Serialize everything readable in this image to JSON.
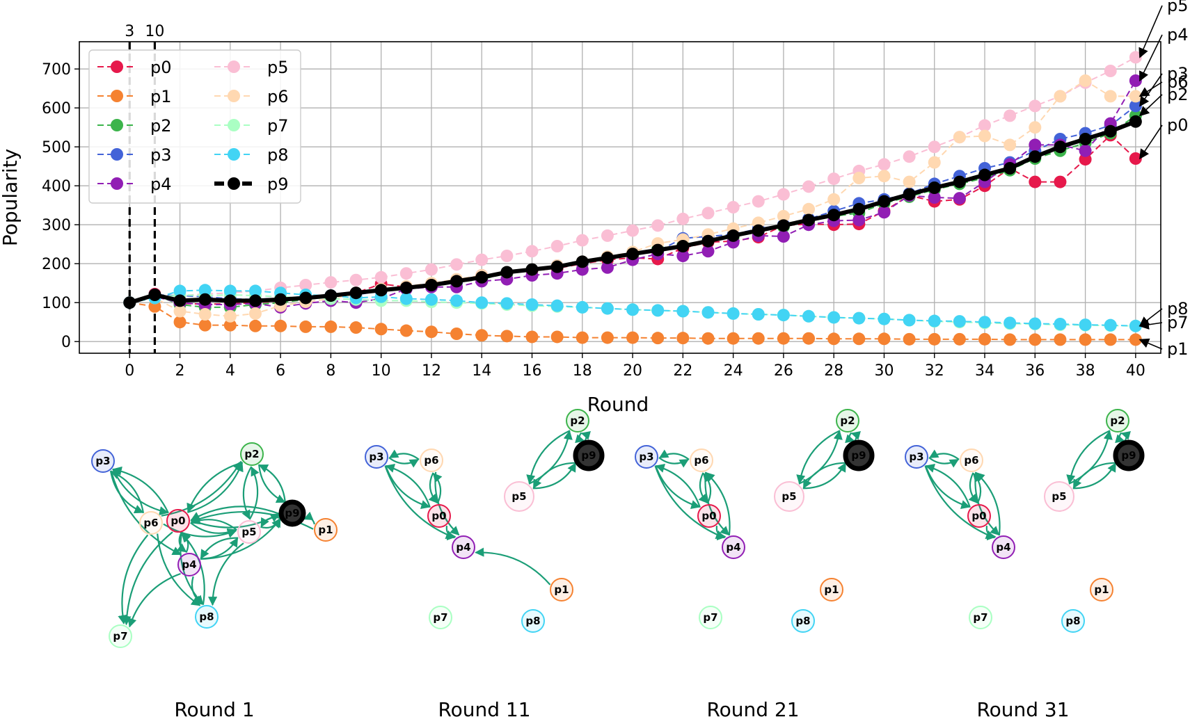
{
  "chart_data": [
    {
      "type": "line",
      "xlabel": "Round",
      "ylabel": "Popularity",
      "xlim": [
        -2,
        41
      ],
      "ylim": [
        -30,
        770
      ],
      "xticks": [
        0,
        2,
        4,
        6,
        8,
        10,
        12,
        14,
        16,
        18,
        20,
        22,
        24,
        26,
        28,
        30,
        32,
        34,
        36,
        38,
        40
      ],
      "yticks": [
        0,
        100,
        200,
        300,
        400,
        500,
        600,
        700
      ],
      "grid": true,
      "legend": "upper-left",
      "vlines": [
        {
          "x": 0,
          "label": "3"
        },
        {
          "x": 1,
          "label": "10"
        }
      ],
      "x": [
        0,
        1,
        2,
        3,
        4,
        5,
        6,
        7,
        8,
        9,
        10,
        11,
        12,
        13,
        14,
        15,
        16,
        17,
        18,
        19,
        20,
        21,
        22,
        23,
        24,
        25,
        26,
        27,
        28,
        29,
        30,
        31,
        32,
        33,
        34,
        35,
        36,
        37,
        38,
        39,
        40
      ],
      "series": [
        {
          "name": "p0",
          "color": "#e6194b",
          "values": [
            100,
            122,
            98,
            96,
            97,
            100,
            104,
            112,
            118,
            125,
            148,
            140,
            145,
            155,
            170,
            175,
            182,
            188,
            200,
            210,
            215,
            212,
            240,
            255,
            258,
            268,
            298,
            302,
            300,
            302,
            335,
            375,
            360,
            365,
            400,
            445,
            410,
            410,
            468,
            530,
            470
          ]
        },
        {
          "name": "p1",
          "color": "#f58231",
          "values": [
            100,
            90,
            50,
            42,
            42,
            40,
            40,
            38,
            38,
            36,
            32,
            28,
            25,
            20,
            16,
            14,
            12,
            12,
            10,
            10,
            10,
            9,
            9,
            8,
            8,
            8,
            8,
            8,
            7,
            7,
            7,
            6,
            6,
            6,
            6,
            5,
            5,
            5,
            5,
            5,
            5
          ]
        },
        {
          "name": "p2",
          "color": "#3cb44b",
          "values": [
            100,
            120,
            95,
            88,
            88,
            95,
            100,
            108,
            115,
            120,
            132,
            138,
            145,
            152,
            160,
            175,
            185,
            192,
            202,
            215,
            222,
            238,
            248,
            258,
            268,
            285,
            295,
            310,
            322,
            330,
            355,
            372,
            390,
            405,
            420,
            440,
            470,
            490,
            510,
            535,
            580
          ]
        },
        {
          "name": "p3",
          "color": "#4363d8",
          "values": [
            100,
            120,
            118,
            115,
            110,
            108,
            112,
            115,
            118,
            120,
            130,
            140,
            145,
            152,
            165,
            178,
            185,
            195,
            202,
            215,
            225,
            232,
            265,
            270,
            275,
            290,
            300,
            315,
            335,
            355,
            365,
            380,
            405,
            425,
            445,
            460,
            490,
            520,
            535,
            555,
            605
          ]
        },
        {
          "name": "p4",
          "color": "#911eb4",
          "values": [
            100,
            115,
            100,
            95,
            95,
            98,
            88,
            98,
            105,
            100,
            110,
            135,
            140,
            140,
            155,
            160,
            170,
            175,
            185,
            190,
            210,
            225,
            220,
            232,
            255,
            272,
            270,
            300,
            310,
            312,
            332,
            375,
            370,
            368,
            410,
            455,
            505,
            505,
            490,
            560,
            670
          ]
        },
        {
          "name": "p5",
          "color": "#fabed4",
          "values": [
            100,
            115,
            118,
            122,
            125,
            130,
            138,
            145,
            152,
            158,
            165,
            175,
            185,
            198,
            210,
            220,
            232,
            245,
            260,
            272,
            285,
            298,
            315,
            330,
            345,
            360,
            378,
            398,
            418,
            438,
            455,
            475,
            500,
            525,
            555,
            580,
            605,
            630,
            665,
            695,
            730
          ]
        },
        {
          "name": "p6",
          "color": "#ffd8b1",
          "values": [
            100,
            112,
            78,
            70,
            65,
            72,
            92,
            102,
            110,
            122,
            135,
            142,
            150,
            160,
            170,
            178,
            185,
            195,
            205,
            218,
            230,
            252,
            262,
            275,
            290,
            305,
            322,
            340,
            365,
            420,
            425,
            410,
            460,
            525,
            528,
            505,
            550,
            630,
            670,
            630,
            630
          ]
        },
        {
          "name": "p7",
          "color": "#aaffc3",
          "values": [
            100,
            112,
            120,
            118,
            120,
            118,
            115,
            112,
            110,
            108,
            105,
            105,
            102,
            100,
            98,
            95,
            92,
            90,
            88,
            85,
            82,
            80,
            78,
            75,
            72,
            70,
            68,
            65,
            62,
            60,
            58,
            55,
            52,
            50,
            48,
            46,
            45,
            43,
            42,
            41,
            40
          ]
        },
        {
          "name": "p8",
          "color": "#42d4f4",
          "values": [
            100,
            112,
            130,
            132,
            130,
            130,
            125,
            120,
            118,
            112,
            115,
            110,
            108,
            105,
            100,
            98,
            95,
            92,
            88,
            85,
            82,
            80,
            78,
            75,
            72,
            70,
            68,
            65,
            62,
            60,
            58,
            55,
            53,
            52,
            50,
            48,
            46,
            45,
            43,
            42,
            40
          ]
        },
        {
          "name": "p9",
          "color": "#000000",
          "values": [
            100,
            120,
            105,
            108,
            105,
            105,
            108,
            112,
            118,
            125,
            132,
            138,
            145,
            155,
            165,
            178,
            185,
            192,
            205,
            215,
            225,
            235,
            245,
            258,
            272,
            285,
            298,
            312,
            325,
            340,
            360,
            378,
            395,
            410,
            428,
            445,
            475,
            500,
            520,
            540,
            565
          ]
        }
      ],
      "end_labels": [
        {
          "name": "p5",
          "value": 730
        },
        {
          "name": "p4",
          "value": 670
        },
        {
          "name": "p3",
          "value": 605
        },
        {
          "name": "p6",
          "value": 630
        },
        {
          "name": "p2",
          "value": 580
        },
        {
          "name": "p0",
          "value": 470
        },
        {
          "name": "p8",
          "value": 40
        },
        {
          "name": "p7",
          "value": 40
        },
        {
          "name": "p1",
          "value": 5
        }
      ]
    },
    {
      "type": "network",
      "panels": [
        {
          "title": "Round 1",
          "nodes": [
            "p0",
            "p1",
            "p2",
            "p3",
            "p4",
            "p5",
            "p6",
            "p7",
            "p8",
            "p9"
          ],
          "edges": [
            [
              "p3",
              "p0"
            ],
            [
              "p0",
              "p3"
            ],
            [
              "p3",
              "p6"
            ],
            [
              "p6",
              "p3"
            ],
            [
              "p3",
              "p4"
            ],
            [
              "p2",
              "p0"
            ],
            [
              "p0",
              "p2"
            ],
            [
              "p2",
              "p5"
            ],
            [
              "p5",
              "p2"
            ],
            [
              "p2",
              "p9"
            ],
            [
              "p9",
              "p2"
            ],
            [
              "p6",
              "p2"
            ],
            [
              "p9",
              "p0"
            ],
            [
              "p0",
              "p9"
            ],
            [
              "p1",
              "p9"
            ],
            [
              "p9",
              "p5"
            ],
            [
              "p5",
              "p9"
            ],
            [
              "p1",
              "p0"
            ],
            [
              "p0",
              "p5"
            ],
            [
              "p5",
              "p0"
            ],
            [
              "p6",
              "p5"
            ],
            [
              "p5",
              "p4"
            ],
            [
              "p4",
              "p5"
            ],
            [
              "p4",
              "p9"
            ],
            [
              "p0",
              "p4"
            ],
            [
              "p4",
              "p0"
            ],
            [
              "p0",
              "p7"
            ],
            [
              "p6",
              "p7"
            ],
            [
              "p4",
              "p7"
            ],
            [
              "p0",
              "p8"
            ],
            [
              "p6",
              "p8"
            ],
            [
              "p5",
              "p8"
            ],
            [
              "p4",
              "p8"
            ],
            [
              "p8",
              "p0"
            ]
          ]
        },
        {
          "title": "Round 11",
          "nodes": [
            "p0",
            "p1",
            "p2",
            "p3",
            "p4",
            "p5",
            "p6",
            "p7",
            "p8",
            "p9"
          ],
          "edges": [
            [
              "p3",
              "p6"
            ],
            [
              "p6",
              "p3"
            ],
            [
              "p3",
              "p0"
            ],
            [
              "p0",
              "p3"
            ],
            [
              "p3",
              "p4"
            ],
            [
              "p6",
              "p0"
            ],
            [
              "p0",
              "p6"
            ],
            [
              "p6",
              "p4"
            ],
            [
              "p0",
              "p4"
            ],
            [
              "p1",
              "p4"
            ],
            [
              "p2",
              "p9"
            ],
            [
              "p9",
              "p2"
            ],
            [
              "p2",
              "p5"
            ],
            [
              "p5",
              "p2"
            ],
            [
              "p9",
              "p5"
            ],
            [
              "p5",
              "p9"
            ]
          ]
        },
        {
          "title": "Round 21",
          "nodes": [
            "p0",
            "p1",
            "p2",
            "p3",
            "p4",
            "p5",
            "p6",
            "p7",
            "p8",
            "p9"
          ],
          "edges": [
            [
              "p3",
              "p6"
            ],
            [
              "p6",
              "p3"
            ],
            [
              "p3",
              "p0"
            ],
            [
              "p0",
              "p3"
            ],
            [
              "p3",
              "p4"
            ],
            [
              "p6",
              "p0"
            ],
            [
              "p0",
              "p6"
            ],
            [
              "p6",
              "p4"
            ],
            [
              "p4",
              "p6"
            ],
            [
              "p0",
              "p4"
            ],
            [
              "p2",
              "p9"
            ],
            [
              "p9",
              "p2"
            ],
            [
              "p2",
              "p5"
            ],
            [
              "p5",
              "p2"
            ],
            [
              "p9",
              "p5"
            ],
            [
              "p5",
              "p9"
            ]
          ]
        },
        {
          "title": "Round 31",
          "nodes": [
            "p0",
            "p1",
            "p2",
            "p3",
            "p4",
            "p5",
            "p6",
            "p7",
            "p8",
            "p9"
          ],
          "edges": [
            [
              "p3",
              "p6"
            ],
            [
              "p6",
              "p3"
            ],
            [
              "p3",
              "p0"
            ],
            [
              "p0",
              "p3"
            ],
            [
              "p3",
              "p4"
            ],
            [
              "p6",
              "p0"
            ],
            [
              "p0",
              "p6"
            ],
            [
              "p6",
              "p4"
            ],
            [
              "p4",
              "p6"
            ],
            [
              "p0",
              "p4"
            ],
            [
              "p2",
              "p9"
            ],
            [
              "p9",
              "p2"
            ],
            [
              "p2",
              "p5"
            ],
            [
              "p5",
              "p2"
            ],
            [
              "p9",
              "p5"
            ],
            [
              "p5",
              "p9"
            ]
          ]
        }
      ],
      "edge_color": "#1b9e77",
      "node_colors": {
        "p0": "#e6194b",
        "p1": "#f58231",
        "p2": "#3cb44b",
        "p3": "#4363d8",
        "p4": "#911eb4",
        "p5": "#fabed4",
        "p6": "#ffd8b1",
        "p7": "#aaffc3",
        "p8": "#42d4f4",
        "p9": "#000000"
      }
    }
  ]
}
